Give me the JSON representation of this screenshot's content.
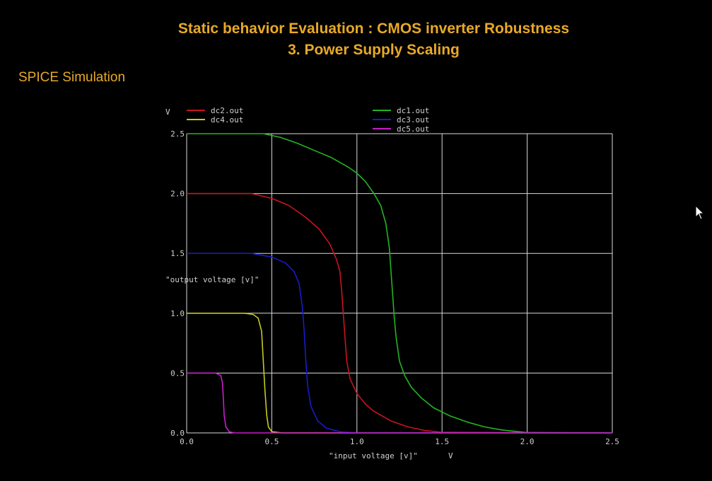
{
  "slide": {
    "title_line1": "Static behavior Evaluation : CMOS inverter Robustness",
    "title_line2": "3. Power Supply Scaling",
    "subtitle": "SPICE Simulation"
  },
  "chart_data": {
    "type": "line",
    "xlabel": "\"input voltage [v]\"",
    "xunit": "V",
    "ylabel": "\"output voltage [v]\"",
    "yunit": "V",
    "xlim": [
      0.0,
      2.5
    ],
    "ylim": [
      0.0,
      2.5
    ],
    "x_ticks": [
      "0.0",
      "0.5",
      "1.0",
      "1.5",
      "2.0",
      "2.5"
    ],
    "y_ticks": [
      "0.0",
      "0.5",
      "1.0",
      "1.5",
      "2.0",
      "2.5"
    ],
    "grid": true,
    "background": "#000000",
    "grid_color": "#d8d8d8",
    "legend_position": "top",
    "series": [
      {
        "name": "dc2.out",
        "color": "#c8141e",
        "points": [
          [
            0.0,
            2.0
          ],
          [
            0.38,
            2.0
          ],
          [
            0.5,
            1.96
          ],
          [
            0.6,
            1.9
          ],
          [
            0.7,
            1.8
          ],
          [
            0.78,
            1.7
          ],
          [
            0.84,
            1.58
          ],
          [
            0.88,
            1.45
          ],
          [
            0.9,
            1.35
          ],
          [
            0.91,
            1.2
          ],
          [
            0.92,
            1.0
          ],
          [
            0.93,
            0.8
          ],
          [
            0.94,
            0.6
          ],
          [
            0.96,
            0.45
          ],
          [
            1.0,
            0.33
          ],
          [
            1.05,
            0.24
          ],
          [
            1.1,
            0.18
          ],
          [
            1.2,
            0.1
          ],
          [
            1.3,
            0.05
          ],
          [
            1.4,
            0.02
          ],
          [
            1.5,
            0.005
          ],
          [
            2.5,
            0.0
          ]
        ]
      },
      {
        "name": "dc1.out",
        "color": "#22b422",
        "points": [
          [
            0.0,
            2.5
          ],
          [
            0.45,
            2.5
          ],
          [
            0.55,
            2.47
          ],
          [
            0.65,
            2.42
          ],
          [
            0.75,
            2.36
          ],
          [
            0.85,
            2.3
          ],
          [
            0.95,
            2.22
          ],
          [
            1.0,
            2.17
          ],
          [
            1.05,
            2.1
          ],
          [
            1.1,
            2.0
          ],
          [
            1.14,
            1.9
          ],
          [
            1.17,
            1.75
          ],
          [
            1.19,
            1.55
          ],
          [
            1.2,
            1.35
          ],
          [
            1.21,
            1.15
          ],
          [
            1.22,
            0.95
          ],
          [
            1.23,
            0.8
          ],
          [
            1.25,
            0.6
          ],
          [
            1.28,
            0.48
          ],
          [
            1.32,
            0.38
          ],
          [
            1.38,
            0.29
          ],
          [
            1.45,
            0.21
          ],
          [
            1.55,
            0.14
          ],
          [
            1.65,
            0.09
          ],
          [
            1.75,
            0.05
          ],
          [
            1.85,
            0.025
          ],
          [
            1.95,
            0.01
          ],
          [
            2.0,
            0.003
          ],
          [
            2.5,
            0.0
          ]
        ]
      },
      {
        "name": "dc4.out",
        "color": "#c8c822",
        "points": [
          [
            0.0,
            1.0
          ],
          [
            0.34,
            1.0
          ],
          [
            0.39,
            0.99
          ],
          [
            0.42,
            0.96
          ],
          [
            0.44,
            0.85
          ],
          [
            0.45,
            0.6
          ],
          [
            0.46,
            0.35
          ],
          [
            0.47,
            0.15
          ],
          [
            0.48,
            0.05
          ],
          [
            0.5,
            0.01
          ],
          [
            0.56,
            0.0
          ],
          [
            2.5,
            0.0
          ]
        ]
      },
      {
        "name": "dc3.out",
        "color": "#1a1ac8",
        "points": [
          [
            0.0,
            1.5
          ],
          [
            0.38,
            1.5
          ],
          [
            0.5,
            1.47
          ],
          [
            0.58,
            1.42
          ],
          [
            0.63,
            1.35
          ],
          [
            0.66,
            1.25
          ],
          [
            0.68,
            1.05
          ],
          [
            0.69,
            0.85
          ],
          [
            0.7,
            0.6
          ],
          [
            0.71,
            0.4
          ],
          [
            0.73,
            0.22
          ],
          [
            0.77,
            0.1
          ],
          [
            0.82,
            0.04
          ],
          [
            0.9,
            0.01
          ],
          [
            1.0,
            0.0
          ],
          [
            2.5,
            0.0
          ]
        ]
      },
      {
        "name": "dc5.out",
        "color": "#c81ec8",
        "points": [
          [
            0.0,
            0.5
          ],
          [
            0.17,
            0.5
          ],
          [
            0.2,
            0.48
          ],
          [
            0.21,
            0.42
          ],
          [
            0.215,
            0.3
          ],
          [
            0.22,
            0.15
          ],
          [
            0.23,
            0.05
          ],
          [
            0.25,
            0.01
          ],
          [
            0.28,
            0.0
          ],
          [
            2.5,
            0.0
          ]
        ]
      }
    ]
  }
}
